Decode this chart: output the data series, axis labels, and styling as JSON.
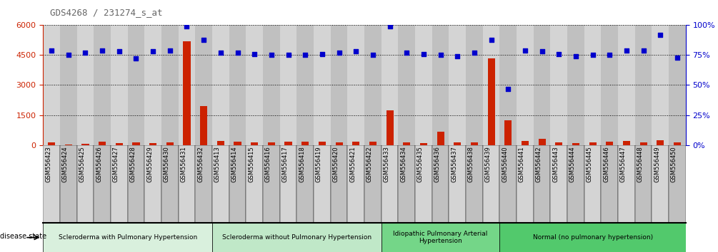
{
  "title": "GDS4268 / 231274_s_at",
  "samples": [
    "GSM556423",
    "GSM556424",
    "GSM556425",
    "GSM556426",
    "GSM556427",
    "GSM556428",
    "GSM556429",
    "GSM556430",
    "GSM556431",
    "GSM556432",
    "GSM556413",
    "GSM556414",
    "GSM556415",
    "GSM556416",
    "GSM556417",
    "GSM556418",
    "GSM556419",
    "GSM556420",
    "GSM556421",
    "GSM556422",
    "GSM556433",
    "GSM556434",
    "GSM556435",
    "GSM556436",
    "GSM556437",
    "GSM556438",
    "GSM556439",
    "GSM556440",
    "GSM556441",
    "GSM556442",
    "GSM556443",
    "GSM556444",
    "GSM556445",
    "GSM556446",
    "GSM556447",
    "GSM556448",
    "GSM556449",
    "GSM556450"
  ],
  "counts": [
    120,
    30,
    60,
    160,
    100,
    130,
    100,
    130,
    5200,
    1950,
    200,
    170,
    130,
    120,
    160,
    145,
    150,
    130,
    145,
    160,
    1750,
    120,
    100,
    650,
    120,
    130,
    4350,
    1250,
    190,
    310,
    130,
    100,
    140,
    160,
    200,
    120,
    240,
    130
  ],
  "percentiles": [
    79,
    75,
    77,
    79,
    78,
    72,
    78,
    79,
    99,
    88,
    77,
    77,
    76,
    75,
    75,
    75,
    76,
    77,
    78,
    75,
    99,
    77,
    76,
    75,
    74,
    77,
    88,
    47,
    79,
    78,
    76,
    74,
    75,
    75,
    79,
    79,
    92,
    73
  ],
  "groups": [
    {
      "label": "Scleroderma with Pulmonary Hypertension",
      "start": 0,
      "end": 10,
      "color": "#d9f0dd"
    },
    {
      "label": "Scleroderma without Pulmonary Hypertension",
      "start": 10,
      "end": 20,
      "color": "#c0e8c8"
    },
    {
      "label": "Idiopathic Pulmonary Arterial\nHypertension",
      "start": 20,
      "end": 27,
      "color": "#74d688"
    },
    {
      "label": "Normal (no pulmonary hypertension)",
      "start": 27,
      "end": 38,
      "color": "#52c96c"
    }
  ],
  "ylim_left": [
    0,
    6000
  ],
  "ylim_right": [
    0,
    100
  ],
  "yticks_left": [
    0,
    1500,
    3000,
    4500,
    6000
  ],
  "yticks_right": [
    0,
    25,
    50,
    75,
    100
  ],
  "bar_color": "#cc2200",
  "dot_color": "#0000cc",
  "title_color": "#666666",
  "ax_label_color_left": "#cc2200",
  "ax_label_color_right": "#0000cc",
  "column_bg_even": "#d4d4d4",
  "column_bg_odd": "#c0c0c0"
}
